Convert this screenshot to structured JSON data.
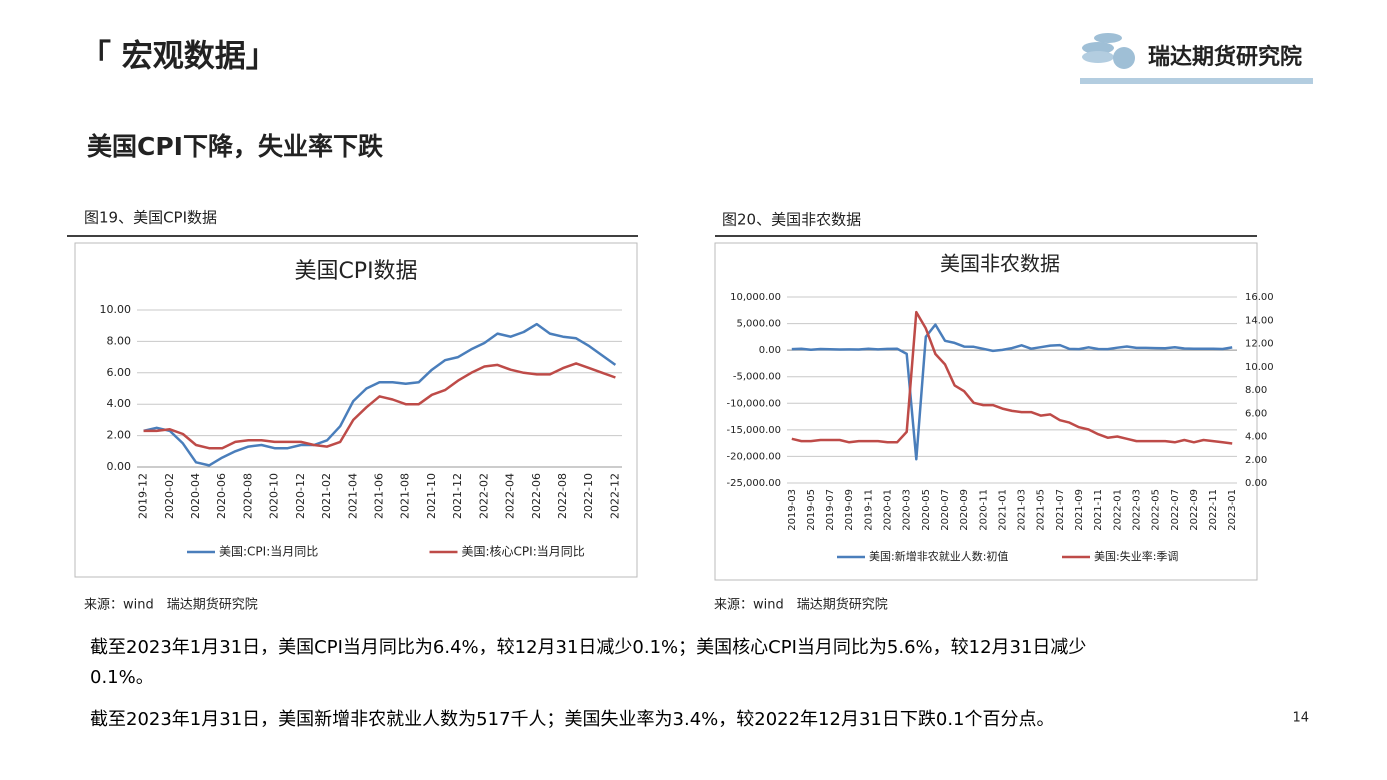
{
  "header": {
    "title": "「 宏观数据」",
    "logo": "瑞达期货研究院",
    "subtitle": "美国CPI下降，失业率下跌"
  },
  "figures": [
    {
      "caption": "图19、美国CPI数据",
      "source": "来源：wind　瑞达期货研究院"
    },
    {
      "caption": "图20、美国非农数据",
      "source": "来源：wind　瑞达期货研究院"
    }
  ],
  "chart_data": [
    {
      "type": "line",
      "title": "美国CPI数据",
      "categories": [
        "2019-12",
        null,
        "2020-02",
        null,
        "2020-04",
        null,
        "2020-06",
        null,
        "2020-08",
        null,
        "2020-10",
        null,
        "2020-12",
        null,
        "2021-02",
        null,
        "2021-04",
        null,
        "2021-06",
        null,
        "2021-08",
        null,
        "2021-10",
        null,
        "2021-12",
        null,
        "2022-02",
        null,
        "2022-04",
        null,
        "2022-06",
        null,
        "2022-08",
        null,
        "2022-10",
        null,
        "2022-12"
      ],
      "series": [
        {
          "name": "美国:CPI:当月同比",
          "color": "#4a7ebb",
          "values": [
            2.3,
            2.5,
            2.3,
            1.5,
            0.3,
            0.1,
            0.6,
            1.0,
            1.3,
            1.4,
            1.2,
            1.2,
            1.4,
            1.4,
            1.7,
            2.6,
            4.2,
            5.0,
            5.4,
            5.4,
            5.3,
            5.4,
            6.2,
            6.8,
            7.0,
            7.5,
            7.9,
            8.5,
            8.3,
            8.6,
            9.1,
            8.5,
            8.3,
            8.2,
            7.7,
            7.1,
            6.5
          ]
        },
        {
          "name": "美国:核心CPI:当月同比",
          "color": "#be4b48",
          "values": [
            2.3,
            2.3,
            2.4,
            2.1,
            1.4,
            1.2,
            1.2,
            1.6,
            1.7,
            1.7,
            1.6,
            1.6,
            1.6,
            1.4,
            1.3,
            1.6,
            3.0,
            3.8,
            4.5,
            4.3,
            4.0,
            4.0,
            4.6,
            4.9,
            5.5,
            6.0,
            6.4,
            6.5,
            6.2,
            6.0,
            5.9,
            5.9,
            6.3,
            6.6,
            6.3,
            6.0,
            5.7
          ]
        }
      ],
      "ylim": [
        0,
        10
      ],
      "yticks": [
        {
          "value": 0,
          "label": "0.00"
        },
        {
          "value": 2,
          "label": "2.00"
        },
        {
          "value": 4,
          "label": "4.00"
        },
        {
          "value": 6,
          "label": "6.00"
        },
        {
          "value": 8,
          "label": "8.00"
        },
        {
          "value": 10,
          "label": "10.00"
        }
      ],
      "grid": true,
      "legend": "bottom"
    },
    {
      "type": "line",
      "title": "美国非农数据",
      "categories": [
        "2019-03",
        null,
        "2019-05",
        null,
        "2019-07",
        null,
        "2019-09",
        null,
        "2019-11",
        null,
        "2020-01",
        null,
        "2020-03",
        null,
        "2020-05",
        null,
        "2020-07",
        null,
        "2020-09",
        null,
        "2020-11",
        null,
        "2021-01",
        null,
        "2021-03",
        null,
        "2021-05",
        null,
        "2021-07",
        null,
        "2021-09",
        null,
        "2021-11",
        null,
        "2022-01",
        null,
        "2022-03",
        null,
        "2022-05",
        null,
        "2022-07",
        null,
        "2022-09",
        null,
        "2022-11",
        null,
        "2023-01"
      ],
      "series": [
        {
          "name": "美国:新增非农就业人数:初值",
          "color": "#4a7ebb",
          "values": [
            189,
            263,
            75,
            224,
            164,
            130,
            136,
            128,
            266,
            145,
            225,
            273,
            -701,
            -20537,
            2509,
            4800,
            1763,
            1371,
            661,
            638,
            245,
            -140,
            49,
            379,
            916,
            266,
            559,
            850,
            943,
            235,
            194,
            531,
            210,
            199,
            467,
            678,
            431,
            428,
            390,
            372,
            528,
            315,
            263,
            261,
            263,
            223,
            517
          ]
        },
        {
          "name": "美国:失业率:季调",
          "color": "#be4b48",
          "axis": "y2",
          "values": [
            3.8,
            3.6,
            3.6,
            3.7,
            3.7,
            3.7,
            3.5,
            3.6,
            3.6,
            3.6,
            3.5,
            3.5,
            4.4,
            14.7,
            13.3,
            11.1,
            10.2,
            8.4,
            7.9,
            6.9,
            6.7,
            6.7,
            6.4,
            6.2,
            6.1,
            6.1,
            5.8,
            5.9,
            5.4,
            5.2,
            4.8,
            4.6,
            4.2,
            3.9,
            4.0,
            3.8,
            3.6,
            3.6,
            3.6,
            3.6,
            3.5,
            3.7,
            3.5,
            3.7,
            3.6,
            3.5,
            3.4
          ]
        }
      ],
      "ylim": [
        -25000,
        10000
      ],
      "yticks": [
        {
          "value": -25000,
          "label": "-25,000.00"
        },
        {
          "value": -20000,
          "label": "-20,000.00"
        },
        {
          "value": -15000,
          "label": "-15,000.00"
        },
        {
          "value": -10000,
          "label": "-10,000.00"
        },
        {
          "value": -5000,
          "label": "-5,000.00"
        },
        {
          "value": 0,
          "label": "0.00"
        },
        {
          "value": 5000,
          "label": "5,000.00"
        },
        {
          "value": 10000,
          "label": "10,000.00"
        }
      ],
      "y2lim": [
        0,
        16
      ],
      "y2ticks": [
        {
          "value": 0,
          "label": "0.00"
        },
        {
          "value": 2,
          "label": "2.00"
        },
        {
          "value": 4,
          "label": "4.00"
        },
        {
          "value": 6,
          "label": "6.00"
        },
        {
          "value": 8,
          "label": "8.00"
        },
        {
          "value": 10,
          "label": "10.00"
        },
        {
          "value": 12,
          "label": "12.00"
        },
        {
          "value": 14,
          "label": "14.00"
        },
        {
          "value": 16,
          "label": "16.00"
        }
      ],
      "grid": true,
      "legend": "bottom"
    }
  ],
  "paragraphs": [
    "截至2023年1月31日，美国CPI当月同比为6.4%，较12月31日减少0.1%；美国核心CPI当月同比为5.6%，较12月31日减少0.1%。",
    "截至2023年1月31日，美国新增非农就业人数为517千人；美国失业率为3.4%，较2022年12月31日下跌0.1个百分点。"
  ],
  "page_number": "14"
}
